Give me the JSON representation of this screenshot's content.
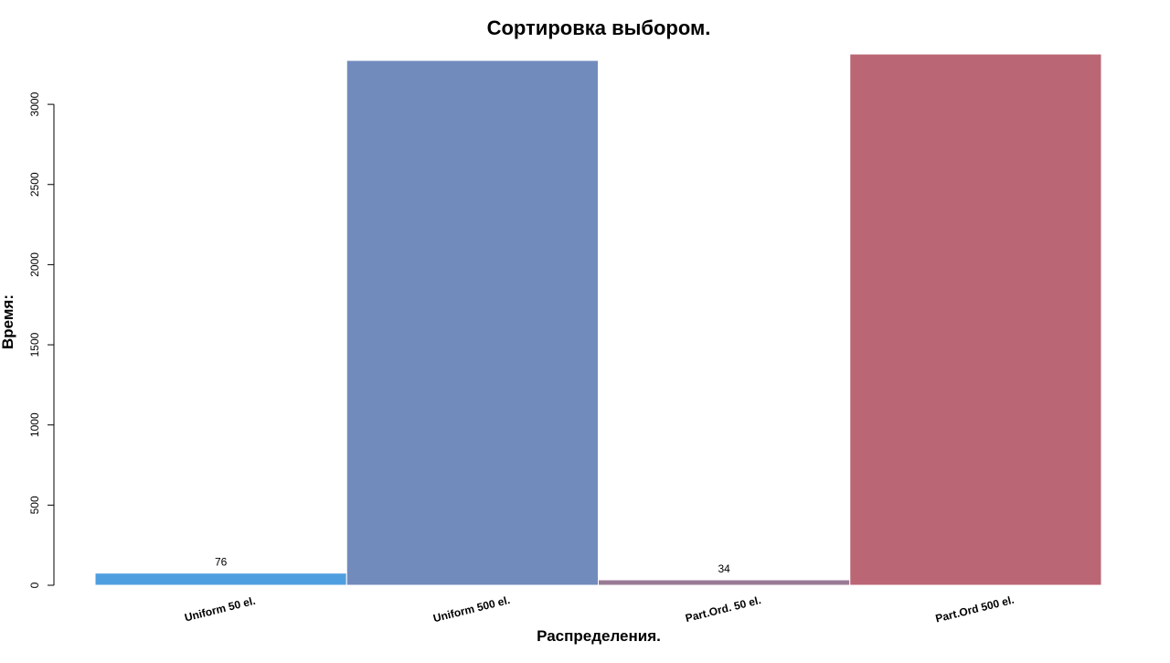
{
  "chart_data": {
    "type": "bar",
    "title": "Сортировка выбором.",
    "x_label": "Распределения.",
    "y_label": "Время:",
    "categories": [
      "Uniform 50 el.",
      "Uniform 500 el.",
      "Part.Ord. 50 el.",
      "Part.Ord 500 el."
    ],
    "values": [
      76,
      3274,
      34,
      3314
    ],
    "value_labels": [
      "76",
      null,
      "34",
      null
    ],
    "colors": [
      "#4f9fe0",
      "#728bbd",
      "#9a7b95",
      "#bb6674"
    ],
    "ylim": [
      0,
      3320
    ],
    "yticks": [
      0,
      500,
      1000,
      1500,
      2000,
      2500,
      3000
    ],
    "grid": false
  }
}
